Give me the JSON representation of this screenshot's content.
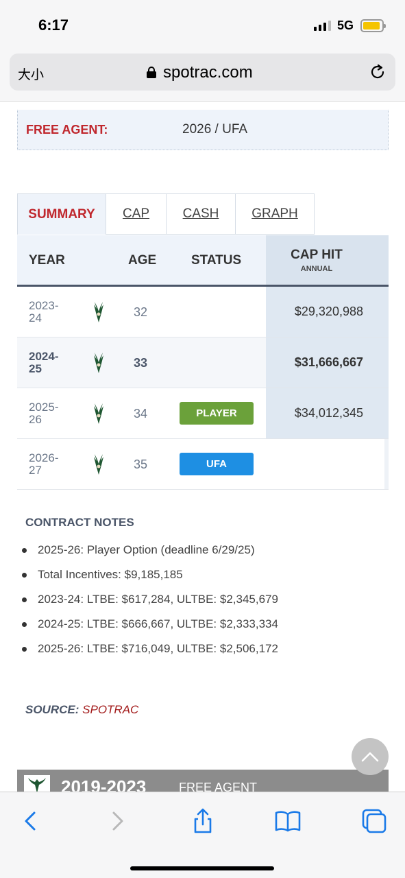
{
  "status_bar": {
    "time": "6:17",
    "network": "5G"
  },
  "browser": {
    "text_size_label": "大小",
    "url": "spotrac.com"
  },
  "free_agent": {
    "label": "FREE AGENT:",
    "value": "2026 / UFA"
  },
  "tabs": [
    {
      "label": "SUMMARY",
      "active": true
    },
    {
      "label": "CAP",
      "active": false
    },
    {
      "label": "CASH",
      "active": false
    },
    {
      "label": "GRAPH",
      "active": false
    }
  ],
  "table": {
    "headers": {
      "year": "YEAR",
      "age": "AGE",
      "status": "STATUS",
      "cap_hit": "CAP HIT",
      "cap_hit_sub": "ANNUAL"
    },
    "rows": [
      {
        "year_top": "2023-",
        "year_bottom": "24",
        "age": "32",
        "status": "",
        "cap_hit": "$29,320,988"
      },
      {
        "year_top": "2024-",
        "year_bottom": "25",
        "age": "33",
        "status": "",
        "cap_hit": "$31,666,667"
      },
      {
        "year_top": "2025-",
        "year_bottom": "26",
        "age": "34",
        "status": "PLAYER",
        "cap_hit": "$34,012,345"
      },
      {
        "year_top": "2026-",
        "year_bottom": "27",
        "age": "35",
        "status": "UFA",
        "cap_hit": ""
      }
    ]
  },
  "contract_notes": {
    "title": "CONTRACT NOTES",
    "items": [
      "2025-26: Player Option (deadline 6/29/25)",
      "Total Incentives: $9,185,185",
      "2023-24: LTBE: $617,284, ULTBE: $2,345,679",
      "2024-25: LTBE: $666,667, ULTBE: $2,333,334",
      "2025-26: LTBE: $716,049, ULTBE: $2,506,172"
    ]
  },
  "source": {
    "label": "SOURCE:",
    "link": "SPOTRAC"
  },
  "next_section": {
    "years": "2019-2023",
    "type": "FREE AGENT"
  },
  "colors": {
    "accent_red": "#c0272d",
    "player_badge": "#6ba13a",
    "ufa_badge": "#1e8fe3",
    "bucks_green": "#1e5631"
  }
}
